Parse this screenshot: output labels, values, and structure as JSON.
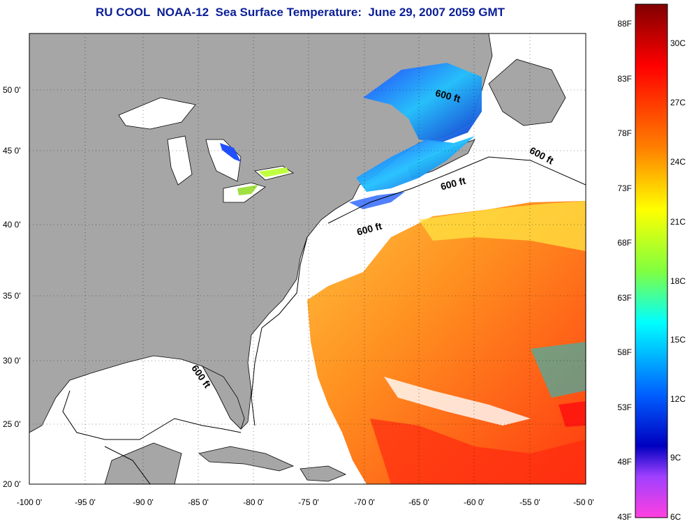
{
  "title": "RU COOL  NOAA-12  Sea Surface Temperature:  June 29, 2007 2059 GMT",
  "lon_ticks": [
    "-100 0'",
    "-95 0'",
    "-90 0'",
    "-85 0'",
    "-80 0'",
    "-75 0'",
    "-70 0'",
    "-65 0'",
    "-60 0'",
    "-55 0'",
    "-50 0'"
  ],
  "lat_ticks": [
    "50 0'",
    "45 0'",
    "40 0'",
    "35 0'",
    "30 0'",
    "25 0'",
    "20 0'"
  ],
  "contour_labels": [
    "600 ft",
    "600 ft",
    "600 ft",
    "600 ft",
    "600 ft"
  ],
  "colorbar": {
    "fahrenheit": [
      "88F",
      "83F",
      "78F",
      "73F",
      "68F",
      "63F",
      "58F",
      "53F",
      "48F",
      "43F"
    ],
    "celsius": [
      "30C",
      "27C",
      "24C",
      "21C",
      "18C",
      "15C",
      "12C",
      "9C",
      "6C"
    ]
  },
  "colors": {
    "land": "#a6a6a6",
    "ocean": "#ffffff",
    "title": "#0a1e96"
  }
}
